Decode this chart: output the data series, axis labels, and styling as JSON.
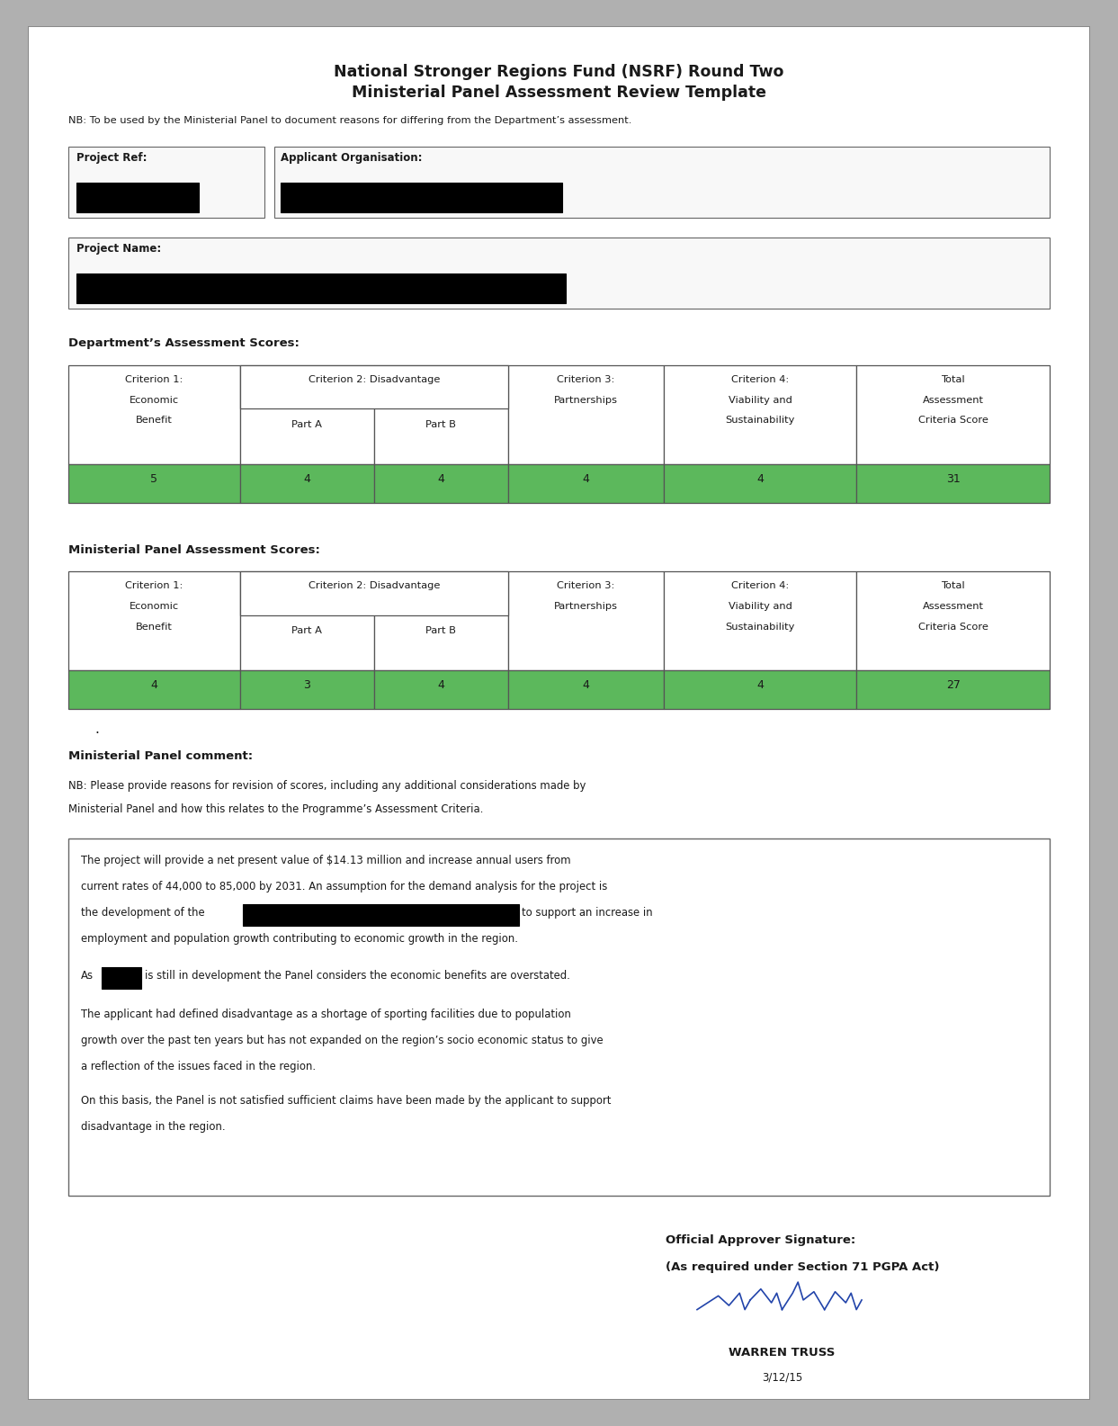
{
  "title_line1": "National Stronger Regions Fund (NSRF) Round Two",
  "title_line2": "Ministerial Panel Assessment Review Template",
  "nb_text": "NB: To be used by the Ministerial Panel to document reasons for differing from the Department’s assessment.",
  "project_ref_label": "Project Ref:",
  "applicant_org_label": "Applicant Organisation:",
  "project_name_label": "Project Name:",
  "dept_scores_label": "Department’s Assessment Scores:",
  "min_scores_label": "Ministerial Panel Assessment Scores:",
  "dept_scores": [
    "5",
    "4",
    "4",
    "4",
    "4",
    "31"
  ],
  "min_scores": [
    "4",
    "3",
    "4",
    "4",
    "4",
    "27"
  ],
  "comment_header": "Ministerial Panel comment:",
  "signature_line1": "Official Approver Signature:",
  "signature_line2": "(As required under Section 71 PGPA Act)",
  "signature_name": "WARREN TRUSS",
  "signature_date": "3/12/15",
  "green_color": "#5cb85c",
  "table_border_color": "#555555",
  "page_bg": "#ffffff",
  "outer_bg": "#b0b0b0",
  "text_color": "#1a1a1a"
}
